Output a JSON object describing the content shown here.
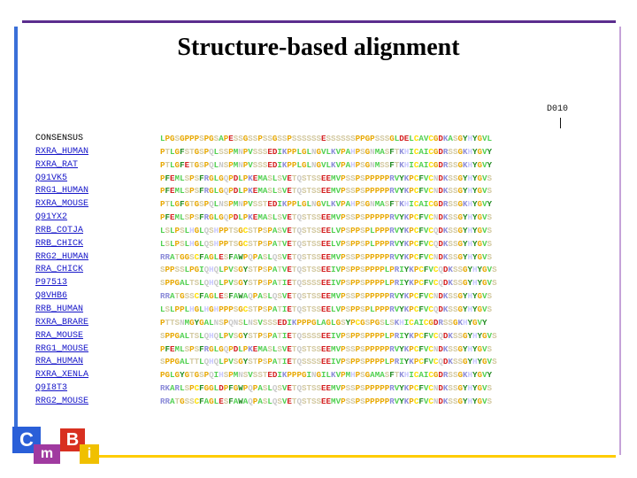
{
  "title": "Structure-based alignment",
  "marker_label": "D010",
  "sequences": [
    {
      "name": "CONSENSUS",
      "seq": "LPGSGPPPSPGSAPESSGSSPSSGSSPSSSSSSESSSSSSPPGPSSSGLDELCAVCGDKASGYHYGVL"
    },
    {
      "name": "RXRA_HUMAN",
      "seq": "PTLGFSTGSPQLSSPMNPVSSSEDIKPPLGLNGVLKVPAHPSGNMASFTKHICAICGDRSSGKHYGVY"
    },
    {
      "name": "RXRA_RAT",
      "seq": "PTLGFETGSPQLNSPMNPVSSSEDIKPPLGLNGVLKVPAHPSGNMSSFTKHICAICGDRSSGKHYGVY"
    },
    {
      "name": "Q91VK5",
      "seq": "PFEMLSPSFRGLGQPDLPKEMASLSVETQSTSSEEMVPSSPSPPPPPRVYKPCFVCNDKSSGYHYGVS"
    },
    {
      "name": "RRG1_HUMAN",
      "seq": "PFEMLSPSFRGLGQPDLPKEMASLSVETQSTSSEEMVPSSPSPPPPPRVYKPCFVCNDKSSGYHYGVS"
    },
    {
      "name": "RXRA_MOUSE",
      "seq": "PTLGFGTGSPQLNSPMNPVSSTEDIKPPLGLNGVLKVPAHPSGNMASFTKHICAICGDRSSGKHYGVY"
    },
    {
      "name": "Q91YX2",
      "seq": "PFEMLSPSFRGLGQPDLPKEMASLSVETQSTSSEEMVPSSPSPPPPPRVYKPCFVCNDKSSGYHYGVS"
    },
    {
      "name": "RRB_COTJA",
      "seq": "LSLPSLHGLQSHPPTSGCSTPSPASVETQSTSSEELVPSPPSPLPPPRVYKPCFVCQDKSSGYHYGVS"
    },
    {
      "name": "RRB_CHICK",
      "seq": "LSLPSLHGLQSHPPTSGCSTPSPATVETQSTSSEELVPSPPSPLPPPRVYKPCFVCQDKSSGYHYGVS"
    },
    {
      "name": "RRG2_HUMAN",
      "seq": "RRATGGSCFAGLESFAWPQPASLQSVETQSTSSEEMVPSSPSPPPPPRVYKPCFVCNDKSSGYHYGVS"
    },
    {
      "name": "RRA_CHICK",
      "seq": "SPPSSLPGIQHQLPVSGYSTPSPATVETQSTSSEEIVPSPPSPPPPLPRIYKPCFVCQDKSSGYHYGVS"
    },
    {
      "name": "P97513",
      "seq": "SPPGALTSLQHQLPVSGYSTPSPATIETQSSSSEEIVPSPPSPPPPLPRIYKPCFVCQDKSSGYHYGVS"
    },
    {
      "name": "Q8VHB6",
      "seq": "RRATGSSCFAGLESFAWAQPASLQSVETQSTSSEEMVPSSPSPPPPPRVYKPCFVCNDKSSGYHYGVS"
    },
    {
      "name": "RRB_HUMAN",
      "seq": "LSLPPLHGLHGHPPPSGCSTPSPATIETQSTSSEELVPSPPSPLPPPRVYKPCFVCQDKSSGYHYGVS"
    },
    {
      "name": "RXRA_BRARE",
      "seq": "PTTSNMGYGALNSPQNSLNSVSSSEDIKPPPGLAGLGSYPCGSPGSLSKHICAICGDRSSGKHYGVY"
    },
    {
      "name": "RRA_MOUSE",
      "seq": "SPPGALTSLQHQLPVSGYSTPSPATIETQSSSSEEIVPSPPSPPPPLPRIYKPCFVCQDKSSGYHYGVS"
    },
    {
      "name": "RRG1_MOUSE",
      "seq": "PFEMLSPSFRGLGQPDLPKEMASLSVETQSTSSEEMVPSSPSPPPPPRVYKPCFVCNDKSSGYHYGVS"
    },
    {
      "name": "RRA_HUMAN",
      "seq": "SPPGALTTLQHQLPVSGYSTPSPATIETQSSSSEEIVPSPPSPPPPLPRIYKPCFVCQDKSSGYHYGVS"
    },
    {
      "name": "RXRA_XENLA",
      "seq": "PGLGYGTGSPQIHSPMNSVSSTEDIKPPPGINGILKVPMHPSGAMASFTKHICAICGDRSSGKHYGVY"
    },
    {
      "name": "Q9I8T3",
      "seq": "RKARLSPCFGGLDPFGWPQPASLQSVETQSTSSEEMVPSSPSPPPPPRVYKPCFVCNDKSSGYHYGVS"
    },
    {
      "name": "RRG2_MOUSE",
      "seq": "RRATGSSCFAGLESFAWAQPASLQSVETQSTSSEEMVPSSPSPPPPPRVYKPCFVCNDKSSGYHYGVS"
    }
  ],
  "residue_colors": {
    "G": "#e8a800",
    "P": "#e8a800",
    "S": "#d3c9a0",
    "T": "#d3c9a0",
    "H": "#c8c8ff",
    "K": "#8a8ad8",
    "R": "#8a8ad8",
    "D": "#d42020",
    "E": "#d42020",
    "N": "#c8c8c8",
    "Q": "#c8c8c8",
    "C": "#ffe000",
    "A": "#50d050",
    "V": "#50d050",
    "L": "#50d050",
    "I": "#50d050",
    "M": "#50d050",
    "F": "#208a20",
    "Y": "#208a20",
    "W": "#208a20"
  },
  "logo": {
    "letters": [
      "C",
      "B",
      "m",
      "i"
    ],
    "colors": [
      "#2a5fd8",
      "#d83020",
      "#a03aa0",
      "#f0c000"
    ]
  }
}
